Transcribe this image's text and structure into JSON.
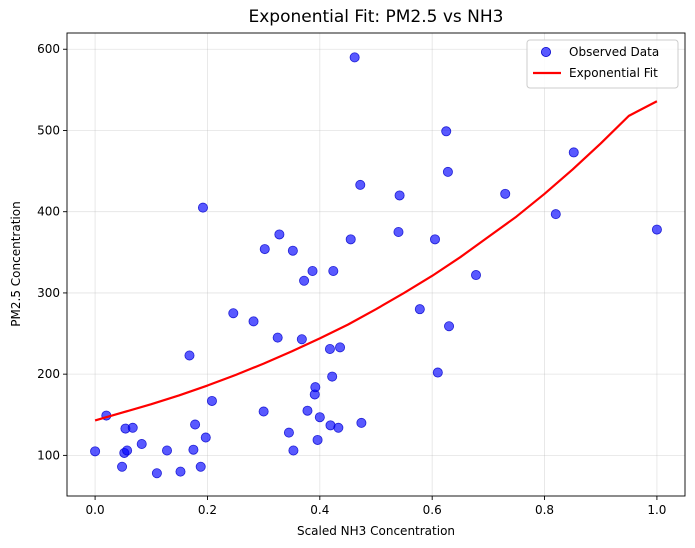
{
  "chart_data": {
    "type": "scatter",
    "title": "Exponential Fit: PM2.5 vs NH3",
    "xlabel": "Scaled NH3 Concentration",
    "ylabel": "PM2.5 Concentration",
    "xlim": [
      -0.05,
      1.05
    ],
    "ylim": [
      50,
      620
    ],
    "xticks": [
      0.0,
      0.2,
      0.4,
      0.6,
      0.8,
      1.0
    ],
    "xtick_labels": [
      "0.0",
      "0.2",
      "0.4",
      "0.6",
      "0.8",
      "1.0"
    ],
    "yticks": [
      100,
      200,
      300,
      400,
      500,
      600
    ],
    "ytick_labels": [
      "100",
      "200",
      "300",
      "400",
      "500",
      "600"
    ],
    "grid": true,
    "legend_position": "top-right",
    "series": [
      {
        "name": "Observed Data",
        "kind": "scatter",
        "color": "#0000ff",
        "points": [
          [
            0.0,
            105
          ],
          [
            0.02,
            149
          ],
          [
            0.048,
            86
          ],
          [
            0.052,
            103
          ],
          [
            0.054,
            133
          ],
          [
            0.057,
            106
          ],
          [
            0.067,
            134
          ],
          [
            0.083,
            114
          ],
          [
            0.11,
            78
          ],
          [
            0.128,
            106
          ],
          [
            0.152,
            80
          ],
          [
            0.168,
            223
          ],
          [
            0.175,
            107
          ],
          [
            0.178,
            138
          ],
          [
            0.188,
            86
          ],
          [
            0.192,
            405
          ],
          [
            0.197,
            122
          ],
          [
            0.208,
            167
          ],
          [
            0.246,
            275
          ],
          [
            0.282,
            265
          ],
          [
            0.3,
            154
          ],
          [
            0.302,
            354
          ],
          [
            0.325,
            245
          ],
          [
            0.328,
            372
          ],
          [
            0.345,
            128
          ],
          [
            0.352,
            352
          ],
          [
            0.353,
            106
          ],
          [
            0.368,
            243
          ],
          [
            0.372,
            315
          ],
          [
            0.378,
            155
          ],
          [
            0.387,
            327
          ],
          [
            0.391,
            175
          ],
          [
            0.392,
            184
          ],
          [
            0.396,
            119
          ],
          [
            0.4,
            147
          ],
          [
            0.418,
            231
          ],
          [
            0.419,
            137
          ],
          [
            0.422,
            197
          ],
          [
            0.424,
            327
          ],
          [
            0.433,
            134
          ],
          [
            0.436,
            233
          ],
          [
            0.455,
            366
          ],
          [
            0.462,
            590
          ],
          [
            0.472,
            433
          ],
          [
            0.474,
            140
          ],
          [
            0.54,
            375
          ],
          [
            0.542,
            420
          ],
          [
            0.578,
            280
          ],
          [
            0.605,
            366
          ],
          [
            0.61,
            202
          ],
          [
            0.625,
            499
          ],
          [
            0.628,
            449
          ],
          [
            0.63,
            259
          ],
          [
            0.678,
            322
          ],
          [
            0.73,
            422
          ],
          [
            0.82,
            397
          ],
          [
            0.852,
            473
          ],
          [
            1.0,
            378
          ]
        ]
      },
      {
        "name": "Exponential Fit",
        "kind": "line",
        "color": "#ff0000",
        "points": [
          [
            0.0,
            143
          ],
          [
            0.05,
            153
          ],
          [
            0.1,
            163
          ],
          [
            0.15,
            174
          ],
          [
            0.2,
            186
          ],
          [
            0.25,
            199
          ],
          [
            0.3,
            213
          ],
          [
            0.35,
            228
          ],
          [
            0.4,
            244
          ],
          [
            0.45,
            261
          ],
          [
            0.5,
            280
          ],
          [
            0.55,
            300
          ],
          [
            0.6,
            321
          ],
          [
            0.65,
            344
          ],
          [
            0.7,
            369
          ],
          [
            0.75,
            394
          ],
          [
            0.8,
            422
          ],
          [
            0.85,
            452
          ],
          [
            0.9,
            484
          ],
          [
            0.95,
            518
          ],
          [
            1.0,
            536
          ]
        ]
      }
    ]
  }
}
